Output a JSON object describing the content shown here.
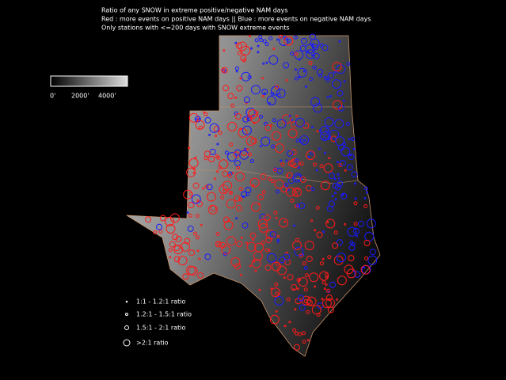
{
  "title_lines": [
    "Ratio of any SNOW in extreme positive/negative NAM days",
    "Red : more events on positive NAM days || Blue : more events on negative NAM days",
    "Only stations with <=200 days with SNOW extreme events"
  ],
  "colorbar": {
    "labels": [
      "0'",
      "2000'",
      "4000'"
    ]
  },
  "legend": {
    "items": [
      "1:1 - 1.2:1 ratio",
      "1.2:1 - 1.5:1 ratio",
      "1.5:1 - 2:1 ratio",
      ">2:1 ratio"
    ]
  }
}
